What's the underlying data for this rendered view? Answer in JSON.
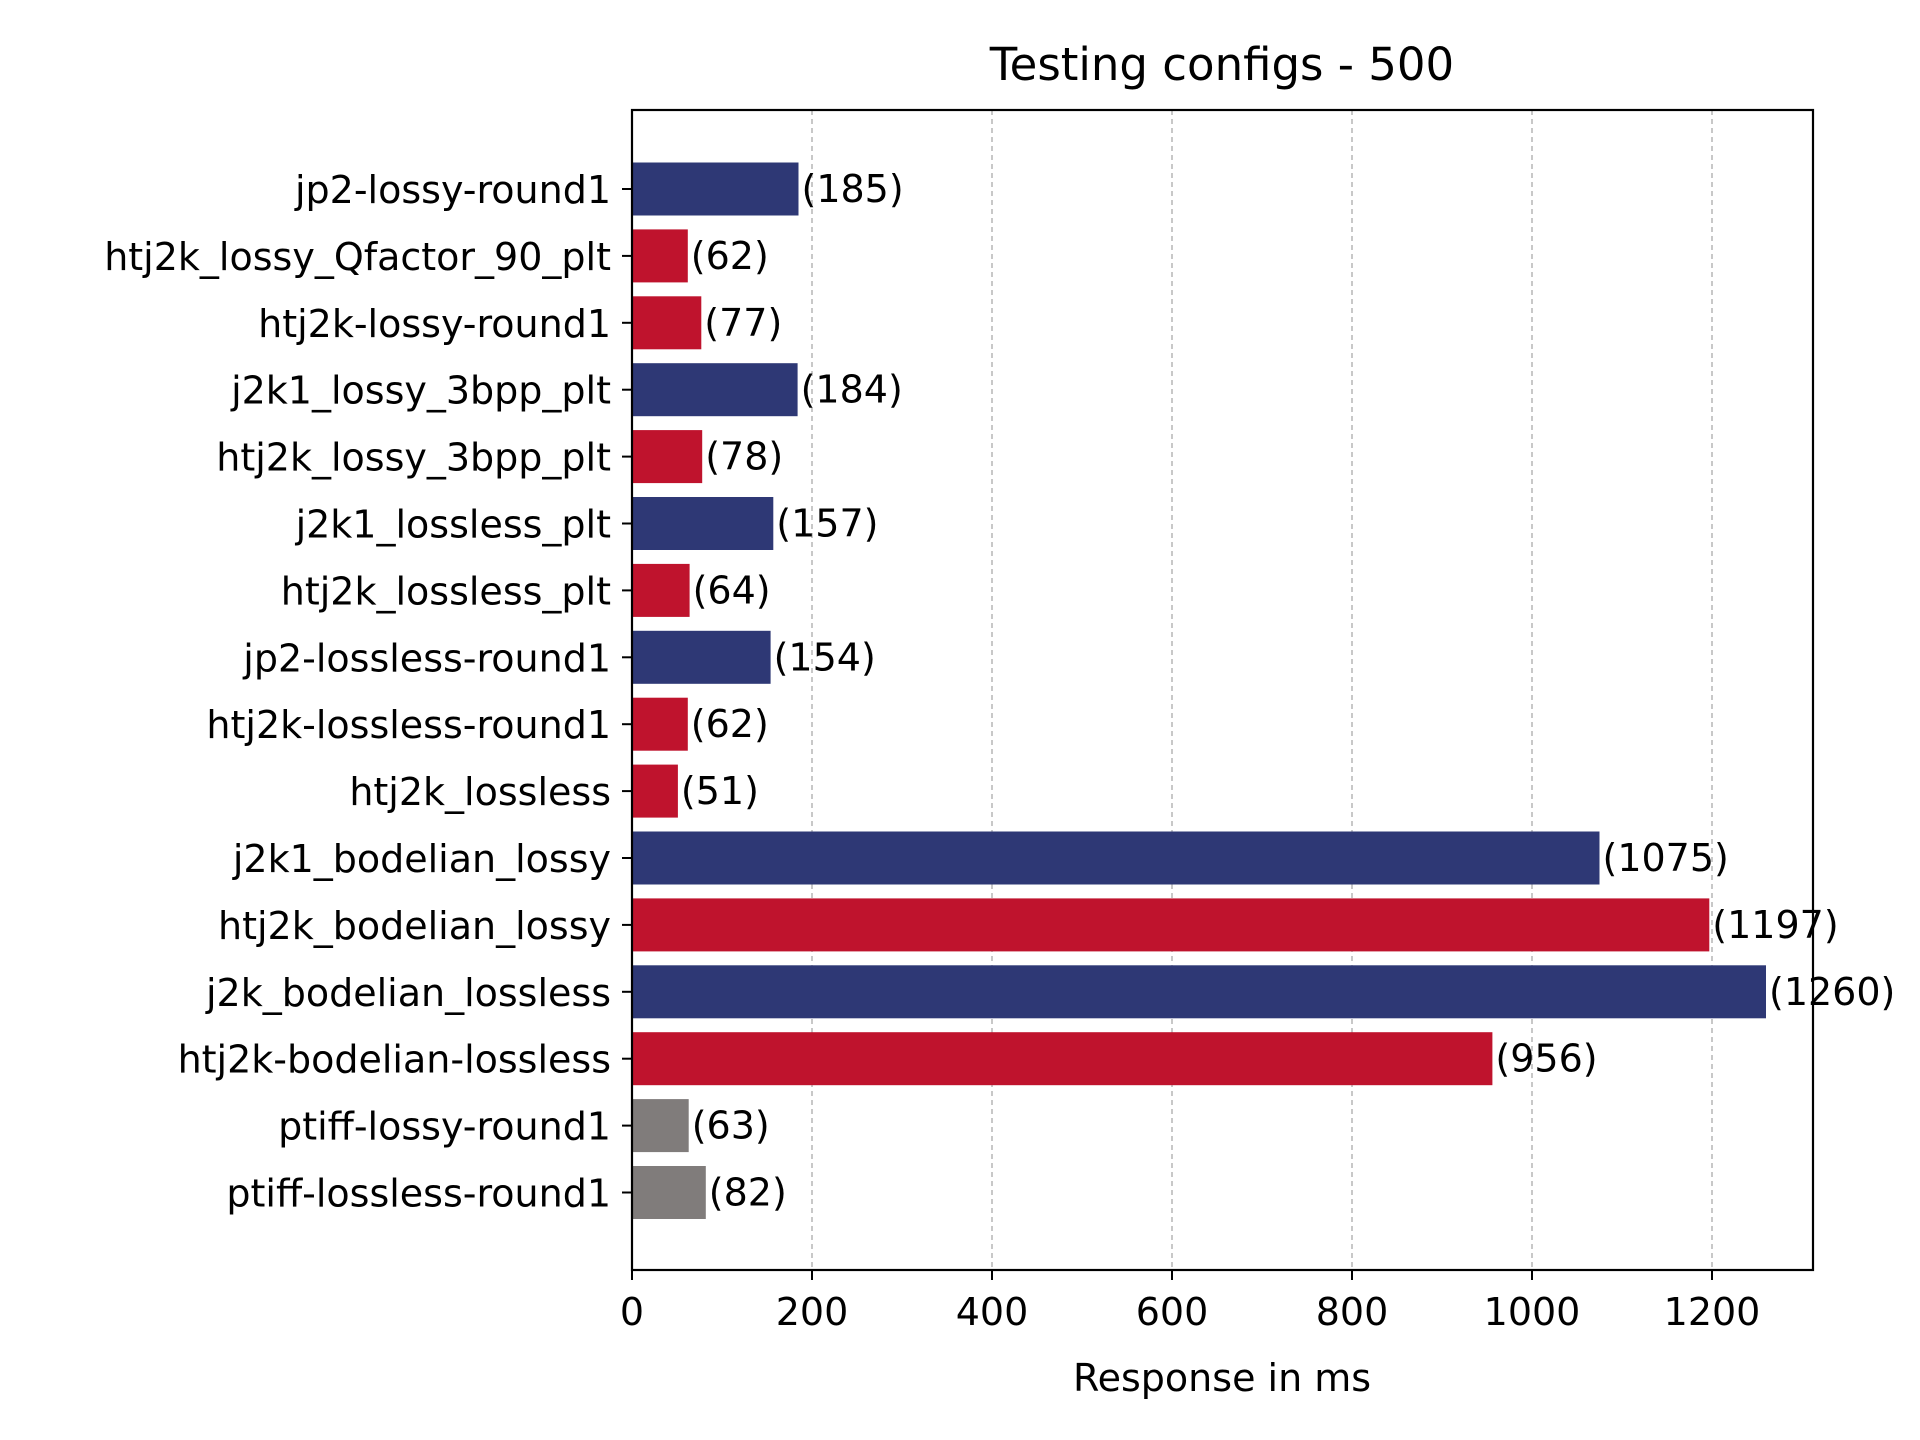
{
  "chart_data": {
    "type": "bar",
    "orientation": "horizontal",
    "title": "Testing configs - 500",
    "xlabel": "Response in ms",
    "ylabel": "",
    "xlim": [
      0,
      1323
    ],
    "xticks": [
      0,
      200,
      400,
      600,
      800,
      1000,
      1200
    ],
    "grid": "x-dashed",
    "colors": {
      "navy": "#2e3875",
      "red": "#bf132d",
      "gray": "#807c7b"
    },
    "bars": [
      {
        "label": "jp2-lossy-round1",
        "value": 185,
        "value_label": "(185)",
        "color": "navy"
      },
      {
        "label": "htj2k_lossy_Qfactor_90_plt",
        "value": 62,
        "value_label": "(62)",
        "color": "red"
      },
      {
        "label": "htj2k-lossy-round1",
        "value": 77,
        "value_label": "(77)",
        "color": "red"
      },
      {
        "label": "j2k1_lossy_3bpp_plt",
        "value": 184,
        "value_label": "(184)",
        "color": "navy"
      },
      {
        "label": "htj2k_lossy_3bpp_plt",
        "value": 78,
        "value_label": "(78)",
        "color": "red"
      },
      {
        "label": "j2k1_lossless_plt",
        "value": 157,
        "value_label": "(157)",
        "color": "navy"
      },
      {
        "label": "htj2k_lossless_plt",
        "value": 64,
        "value_label": "(64)",
        "color": "red"
      },
      {
        "label": "jp2-lossless-round1",
        "value": 154,
        "value_label": "(154)",
        "color": "navy"
      },
      {
        "label": "htj2k-lossless-round1",
        "value": 62,
        "value_label": "(62)",
        "color": "red"
      },
      {
        "label": "htj2k_lossless",
        "value": 51,
        "value_label": "(51)",
        "color": "red"
      },
      {
        "label": "j2k1_bodelian_lossy",
        "value": 1075,
        "value_label": "(1075)",
        "color": "navy"
      },
      {
        "label": "htj2k_bodelian_lossy",
        "value": 1197,
        "value_label": "(1197)",
        "color": "red"
      },
      {
        "label": "j2k_bodelian_lossless",
        "value": 1260,
        "value_label": "(1260)",
        "color": "navy"
      },
      {
        "label": "htj2k-bodelian-lossless",
        "value": 956,
        "value_label": "(956)",
        "color": "red"
      },
      {
        "label": "ptiff-lossy-round1",
        "value": 63,
        "value_label": "(63)",
        "color": "gray"
      },
      {
        "label": "ptiff-lossless-round1",
        "value": 82,
        "value_label": "(82)",
        "color": "gray"
      }
    ]
  }
}
